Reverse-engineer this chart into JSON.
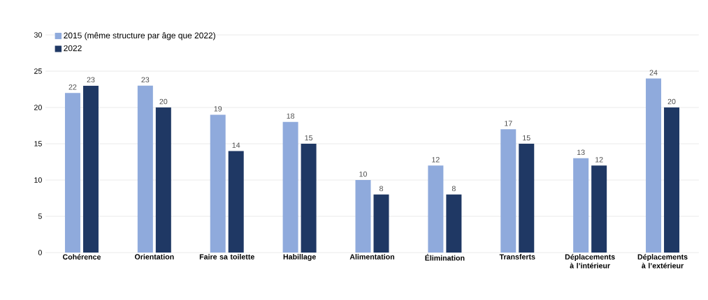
{
  "chart_data": {
    "type": "bar",
    "categories": [
      "Cohérence",
      "Orientation",
      "Faire sa toilette",
      "Habillage",
      "Alimentation",
      "Élimination",
      "Transferts",
      "Déplacements à l’intérieur",
      "Déplacements à l’extérieur"
    ],
    "series": [
      {
        "name": "2015 (même structure par âge que 2022)",
        "color": "#8faadc",
        "values": [
          22,
          23,
          19,
          18,
          10,
          12,
          17,
          13,
          24
        ]
      },
      {
        "name": "2022",
        "color": "#1f3864",
        "values": [
          23,
          20,
          14,
          15,
          8,
          8,
          15,
          12,
          20
        ]
      }
    ],
    "ylim": [
      0,
      30
    ],
    "yticks": [
      0,
      5,
      10,
      15,
      20,
      25,
      30
    ],
    "grid": "y",
    "legend": "top left",
    "data_labels": true
  }
}
